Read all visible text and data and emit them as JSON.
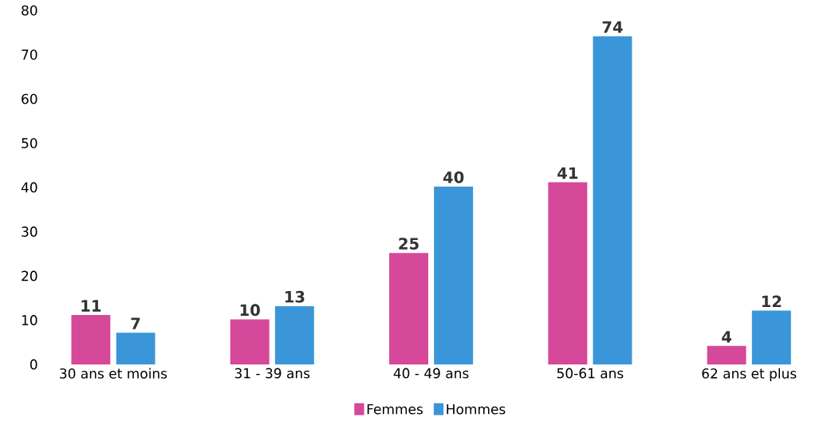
{
  "chart_data": {
    "type": "bar",
    "categories": [
      "30 ans et moins",
      "31 - 39 ans",
      "40 - 49 ans",
      "50-61 ans",
      "62 ans et plus"
    ],
    "series": [
      {
        "name": "Femmes",
        "color": "#d6489a",
        "values": [
          11,
          10,
          25,
          41,
          4
        ]
      },
      {
        "name": "Hommes",
        "color": "#3a96d8",
        "values": [
          7,
          13,
          40,
          74,
          12
        ]
      }
    ],
    "ylim": [
      0,
      80
    ],
    "yticks": [
      0,
      10,
      20,
      30,
      40,
      50,
      60,
      70,
      80
    ],
    "grid": false,
    "legend": "bottom",
    "data_labels": true
  }
}
